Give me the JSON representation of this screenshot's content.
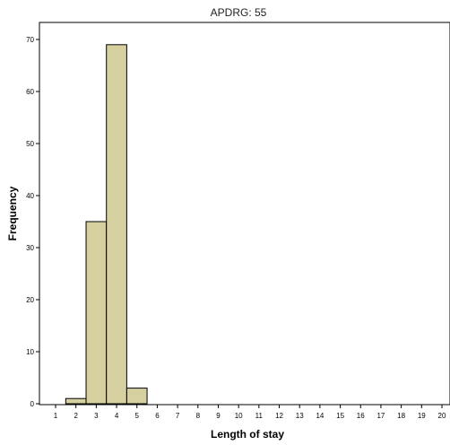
{
  "chart_data": {
    "type": "bar",
    "title": "APDRG: 55",
    "xlabel": "Length of stay",
    "ylabel": "Frequency",
    "ylim": [
      0,
      75
    ],
    "yticks": [
      0,
      10,
      20,
      30,
      40,
      50,
      60,
      70
    ],
    "xlim": [
      0.5,
      20.5
    ],
    "xticks": [
      1,
      2,
      3,
      4,
      5,
      6,
      7,
      8,
      9,
      10,
      11,
      12,
      13,
      14,
      15,
      16,
      17,
      18,
      19,
      20
    ],
    "bin_width": 1,
    "bins": [
      {
        "x": 2,
        "value": 1
      },
      {
        "x": 3,
        "value": 35
      },
      {
        "x": 4,
        "value": 69
      },
      {
        "x": 5,
        "value": 3
      }
    ],
    "bar_color": "#d6d0a0",
    "bar_edge_color": "#000000",
    "grid": false,
    "legend": "none"
  }
}
